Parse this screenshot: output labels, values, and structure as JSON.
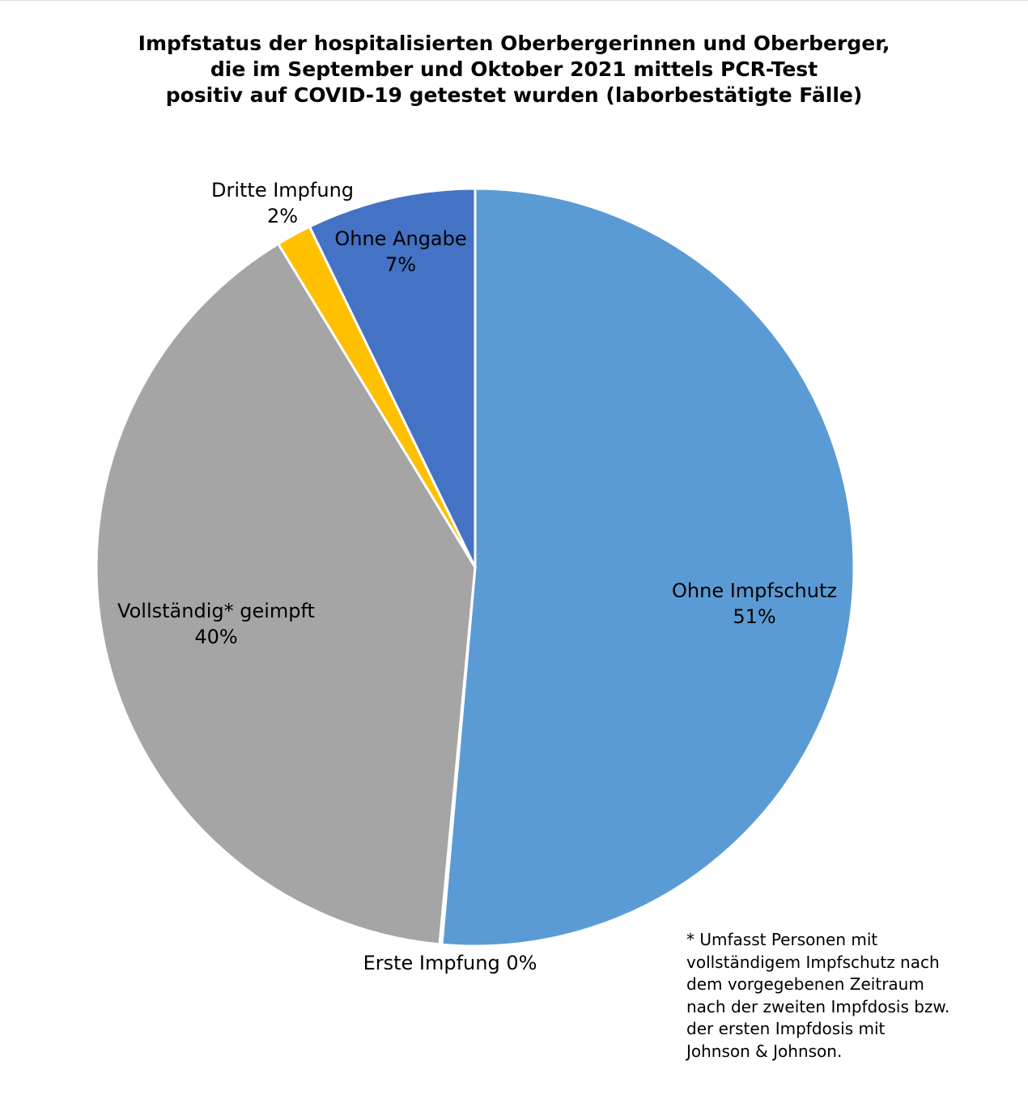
{
  "chart_data": {
    "type": "pie",
    "title_lines": [
      "Impfstatus der hospitalisierten Oberbergerinnen und Oberberger,",
      "die im September und Oktober 2021 mittels PCR-Test",
      "positiv auf COVID-19 getestet wurden (laborbestätigte Fälle)"
    ],
    "slices": [
      {
        "label": "Ohne Impfschutz",
        "percent_label": "51%",
        "value": 51.4,
        "color": "#5b9bd5"
      },
      {
        "label": "Erste Impfung",
        "percent_label": "0%",
        "value": 0.1,
        "color": "#ed7d31"
      },
      {
        "label": "Vollständig* geimpft",
        "percent_label": "40%",
        "value": 39.8,
        "color": "#a5a5a5"
      },
      {
        "label": "Dritte Impfung",
        "percent_label": "2%",
        "value": 1.5,
        "color": "#ffc000"
      },
      {
        "label": "Ohne Angabe",
        "percent_label": "7%",
        "value": 7.2,
        "color": "#4472c4"
      }
    ],
    "start_angle_deg": 0,
    "direction": "clockwise",
    "legend": "none",
    "footnote_lines": [
      "* Umfasst Personen mit",
      "vollständigem Impfschutz nach",
      "dem vorgegebenen Zeitraum",
      "nach der zweiten Impfdosis bzw.",
      "der ersten Impfdosis mit",
      "Johnson & Johnson."
    ]
  }
}
